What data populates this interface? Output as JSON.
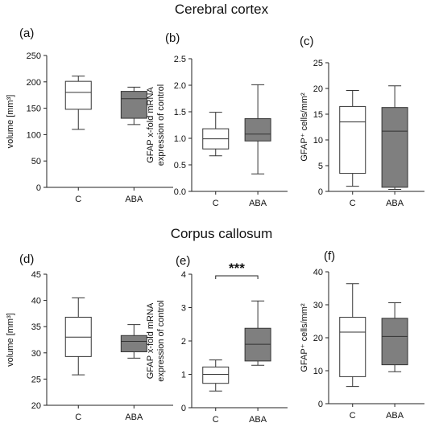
{
  "sections": [
    {
      "title": "Cerebral cortex"
    },
    {
      "title": "Corpus callosum"
    }
  ],
  "colors": {
    "C": "#ffffff",
    "ABA": "#7f7f7f",
    "stroke": "#333333"
  },
  "chart_data": [
    {
      "panel": "(a)",
      "type": "box",
      "section": "Cerebral cortex",
      "ylabel": "volume [mm³]",
      "ylim": [
        0,
        250
      ],
      "yticks": [
        0,
        50,
        100,
        150,
        200,
        250
      ],
      "ytick_labels": [
        "0",
        "50",
        "100",
        "150",
        "200",
        "250"
      ],
      "categories": [
        "C",
        "ABA"
      ],
      "boxes": [
        {
          "name": "C",
          "min": 110,
          "q1": 148,
          "median": 180,
          "q3": 201,
          "max": 211
        },
        {
          "name": "ABA",
          "min": 119,
          "q1": 131,
          "median": 168,
          "q3": 182,
          "max": 190
        }
      ]
    },
    {
      "panel": "(b)",
      "type": "box",
      "section": "Cerebral cortex",
      "ylabel": "GFAP x-fold mRNA\nexpression of control",
      "ylim": [
        0,
        2.5
      ],
      "yticks": [
        0,
        0.5,
        1,
        1.5,
        2,
        2.5
      ],
      "ytick_labels": [
        "0.0",
        "0.5",
        "1.0",
        "1.5",
        "2.0",
        "2.5"
      ],
      "categories": [
        "C",
        "ABA"
      ],
      "boxes": [
        {
          "name": "C",
          "min": 0.67,
          "q1": 0.8,
          "median": 0.99,
          "q3": 1.18,
          "max": 1.49
        },
        {
          "name": "ABA",
          "min": 0.33,
          "q1": 0.95,
          "median": 1.08,
          "q3": 1.37,
          "max": 2.01
        }
      ]
    },
    {
      "panel": "(c)",
      "type": "box",
      "section": "Cerebral cortex",
      "ylabel": "GFAP⁺ cells/mm²",
      "ylim": [
        0,
        25
      ],
      "yticks": [
        0,
        5,
        10,
        15,
        20,
        25
      ],
      "ytick_labels": [
        "0",
        "5",
        "10",
        "15",
        "20",
        "25"
      ],
      "categories": [
        "C",
        "ABA"
      ],
      "boxes": [
        {
          "name": "C",
          "min": 1.0,
          "q1": 3.5,
          "median": 13.5,
          "q3": 16.5,
          "max": 19.6
        },
        {
          "name": "ABA",
          "min": 0.4,
          "q1": 0.8,
          "median": 11.7,
          "q3": 16.3,
          "max": 20.5
        }
      ]
    },
    {
      "panel": "(d)",
      "type": "box",
      "section": "Corpus callosum",
      "ylabel": "volume [mm³]",
      "ylim": [
        20,
        45
      ],
      "yticks": [
        20,
        25,
        30,
        35,
        40,
        45
      ],
      "ytick_labels": [
        "20",
        "25",
        "30",
        "35",
        "40",
        "45"
      ],
      "categories": [
        "C",
        "ABA"
      ],
      "boxes": [
        {
          "name": "C",
          "min": 25.8,
          "q1": 29.3,
          "median": 33.0,
          "q3": 36.8,
          "max": 40.5
        },
        {
          "name": "ABA",
          "min": 29.0,
          "q1": 30.2,
          "median": 32.2,
          "q3": 33.3,
          "max": 35.4
        }
      ]
    },
    {
      "panel": "(e)",
      "type": "box",
      "section": "Corpus callosum",
      "ylabel": "GFAP x-fold mRNA\nexpression of control",
      "ylim": [
        0,
        4
      ],
      "yticks": [
        0,
        1,
        2,
        3,
        4
      ],
      "ytick_labels": [
        "0",
        "1",
        "2",
        "3",
        "4"
      ],
      "categories": [
        "C",
        "ABA"
      ],
      "significance": "***",
      "boxes": [
        {
          "name": "C",
          "min": 0.5,
          "q1": 0.73,
          "median": 1.0,
          "q3": 1.22,
          "max": 1.43
        },
        {
          "name": "ABA",
          "min": 1.27,
          "q1": 1.4,
          "median": 1.9,
          "q3": 2.38,
          "max": 3.2
        }
      ]
    },
    {
      "panel": "(f)",
      "type": "box",
      "section": "Corpus callosum",
      "ylabel": "GFAP⁺ cells/mm²",
      "ylim": [
        0,
        40
      ],
      "yticks": [
        0,
        10,
        20,
        30,
        40
      ],
      "ytick_labels": [
        "0",
        "10",
        "20",
        "30",
        "40"
      ],
      "categories": [
        "C",
        "ABA"
      ],
      "boxes": [
        {
          "name": "C",
          "min": 5.2,
          "q1": 8.2,
          "median": 21.7,
          "q3": 26.2,
          "max": 36.4
        },
        {
          "name": "ABA",
          "min": 9.7,
          "q1": 11.8,
          "median": 20.4,
          "q3": 25.9,
          "max": 30.6
        }
      ]
    }
  ]
}
